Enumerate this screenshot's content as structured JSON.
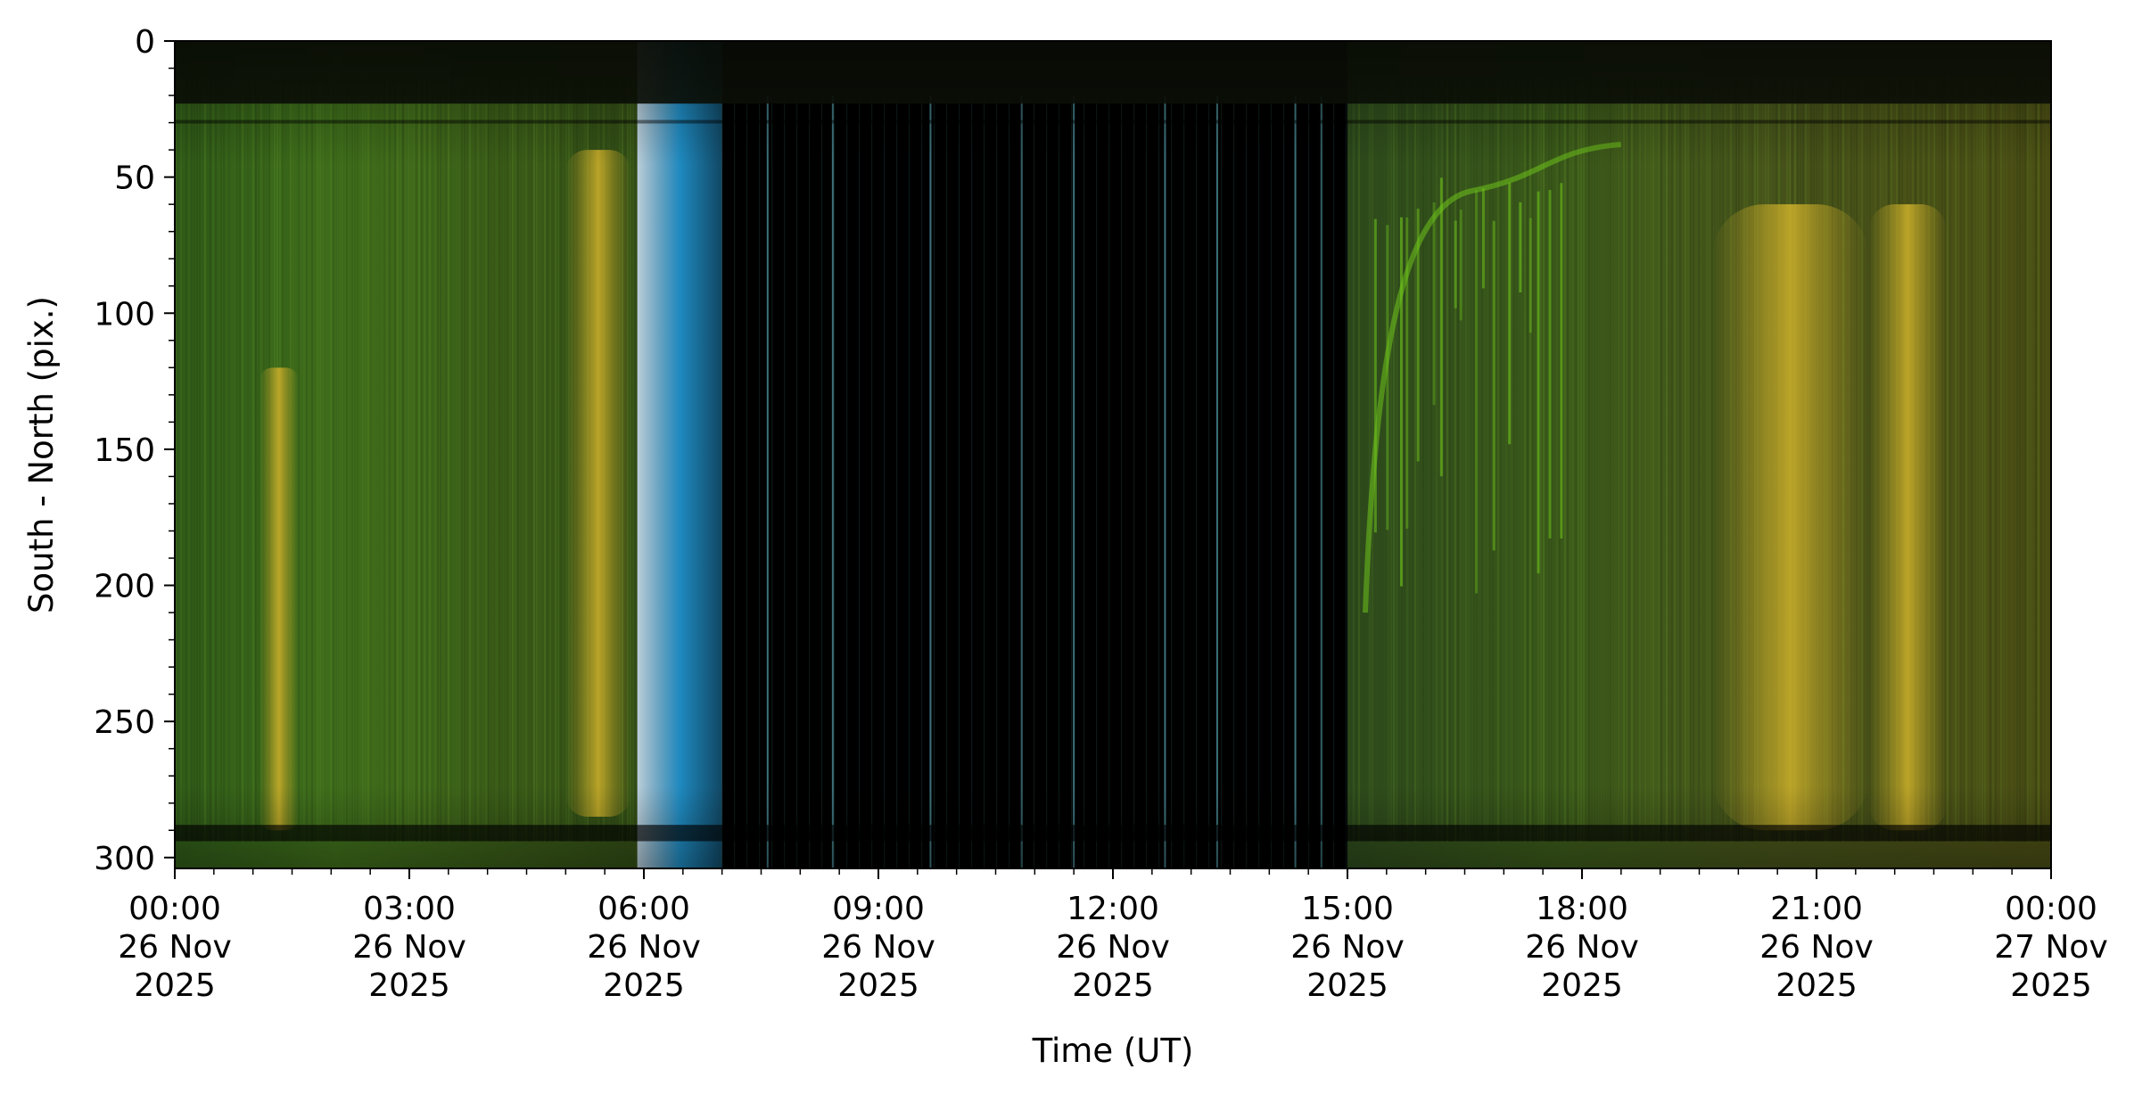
{
  "chart_data": {
    "type": "heatmap",
    "title": "",
    "xlabel": "Time (UT)",
    "ylabel": "South - North (pix.)",
    "x_range": [
      "2025-11-26T00:00",
      "2025-11-27T00:00"
    ],
    "ylim": [
      0,
      304
    ],
    "y_inverted": true,
    "y_ticks": [
      0,
      50,
      100,
      150,
      200,
      250,
      300
    ],
    "x_ticks": [
      {
        "time": "2025-11-26T00:00",
        "label_time": "00:00",
        "label_date": "26 Nov",
        "label_year": "2025"
      },
      {
        "time": "2025-11-26T03:00",
        "label_time": "03:00",
        "label_date": "26 Nov",
        "label_year": "2025"
      },
      {
        "time": "2025-11-26T06:00",
        "label_time": "06:00",
        "label_date": "26 Nov",
        "label_year": "2025"
      },
      {
        "time": "2025-11-26T09:00",
        "label_time": "09:00",
        "label_date": "26 Nov",
        "label_year": "2025"
      },
      {
        "time": "2025-11-26T12:00",
        "label_time": "12:00",
        "label_date": "26 Nov",
        "label_year": "2025"
      },
      {
        "time": "2025-11-26T15:00",
        "label_time": "15:00",
        "label_date": "26 Nov",
        "label_year": "2025"
      },
      {
        "time": "2025-11-26T18:00",
        "label_time": "18:00",
        "label_date": "26 Nov",
        "label_year": "2025"
      },
      {
        "time": "2025-11-26T21:00",
        "label_time": "21:00",
        "label_date": "26 Nov",
        "label_year": "2025"
      },
      {
        "time": "2025-11-27T00:00",
        "label_time": "00:00",
        "label_date": "27 Nov",
        "label_year": "2025"
      }
    ],
    "grid": false,
    "legend": "none",
    "colors": {
      "green_aurora": "#3f6a1a",
      "bright_green": "#6ec21c",
      "yellow_aurora": "#b8a12a",
      "blue_twilight": "#1f86b8",
      "night_sky": "#000000",
      "top_dark_band": "#0d1108"
    },
    "bands": [
      {
        "start": "2025-11-26T00:00",
        "end": "2025-11-26T05:55",
        "kind": "aurora",
        "hue": "green"
      },
      {
        "start": "2025-11-26T05:55",
        "end": "2025-11-26T07:00",
        "kind": "twilight",
        "hue": "blue"
      },
      {
        "start": "2025-11-26T07:00",
        "end": "2025-11-26T15:00",
        "kind": "daylight_gap",
        "hue": "black"
      },
      {
        "start": "2025-11-26T15:00",
        "end": "2025-11-27T00:00",
        "kind": "aurora",
        "hue": "green"
      }
    ],
    "yellow_patches": [
      {
        "center": "2025-11-26T01:20",
        "width_min": 30,
        "y_top": 120,
        "y_bottom": 290
      },
      {
        "center": "2025-11-26T05:25",
        "width_min": 50,
        "y_top": 40,
        "y_bottom": 285
      },
      {
        "center": "2025-11-26T20:40",
        "width_min": 120,
        "y_top": 60,
        "y_bottom": 290
      },
      {
        "center": "2025-11-26T22:10",
        "width_min": 60,
        "y_top": 60,
        "y_bottom": 290
      }
    ],
    "calibration_lines": [
      "2025-11-26T07:35",
      "2025-11-26T08:25",
      "2025-11-26T09:40",
      "2025-11-26T10:50",
      "2025-11-26T11:30",
      "2025-11-26T12:40",
      "2025-11-26T13:20",
      "2025-11-26T14:20",
      "2025-11-26T14:40"
    ]
  }
}
